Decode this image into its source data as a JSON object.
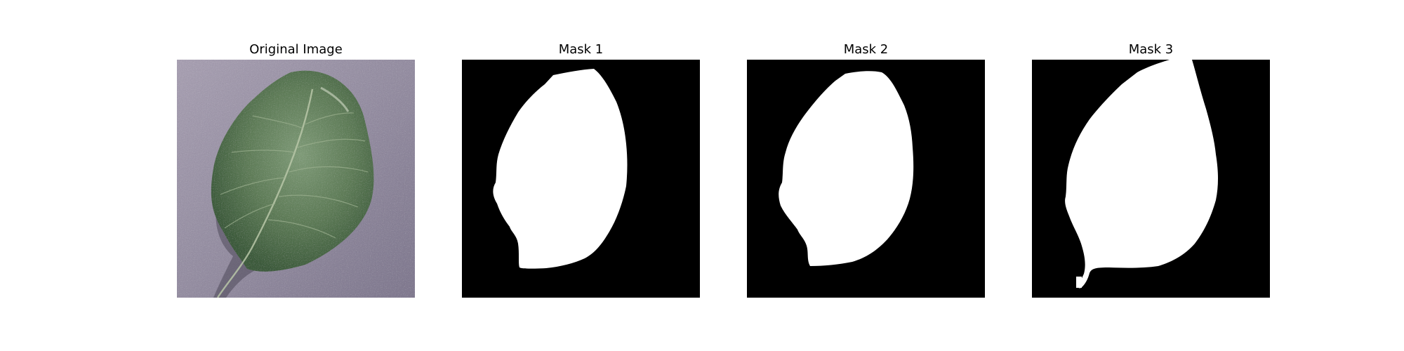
{
  "figure": {
    "background": "#ffffff",
    "panels": [
      {
        "title": "Original Image",
        "kind": "photo",
        "subject": "green-leaf-on-gray-surface"
      },
      {
        "title": "Mask 1",
        "kind": "mask",
        "foreground": "#ffffff",
        "background": "#000000"
      },
      {
        "title": "Mask 2",
        "kind": "mask",
        "foreground": "#ffffff",
        "background": "#000000"
      },
      {
        "title": "Mask 3",
        "kind": "mask",
        "foreground": "#ffffff",
        "background": "#000000"
      }
    ]
  }
}
